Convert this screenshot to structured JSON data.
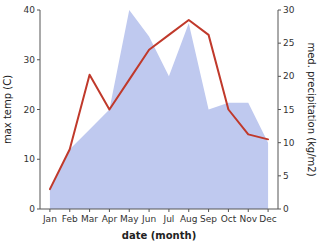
{
  "chart_data": {
    "type": "line",
    "xlabel": "date (month)",
    "ylabel": "max temp (C)",
    "y2label": "med. precipitation (kg/m2)",
    "categories": [
      "Jan",
      "Feb",
      "Mar",
      "Apr",
      "May",
      "Jun",
      "Jul",
      "Aug",
      "Sep",
      "Oct",
      "Nov",
      "Dec"
    ],
    "series": [
      {
        "type": "area",
        "axis": "y2",
        "color": "#bfc9ef",
        "values": [
          3,
          9,
          12,
          15,
          30,
          26,
          20,
          28,
          15,
          16,
          16,
          10
        ]
      },
      {
        "type": "line",
        "color": "#c0392b",
        "values": [
          4,
          12,
          27,
          20,
          26,
          32,
          35,
          38,
          35,
          20,
          15,
          14
        ]
      }
    ],
    "ylim": [
      0,
      40
    ],
    "yticks": [
      0,
      10,
      20,
      30,
      40
    ],
    "y2lim": [
      0,
      30
    ],
    "y2ticks": [
      0,
      5,
      10,
      15,
      20,
      25,
      30
    ],
    "grid": false
  }
}
